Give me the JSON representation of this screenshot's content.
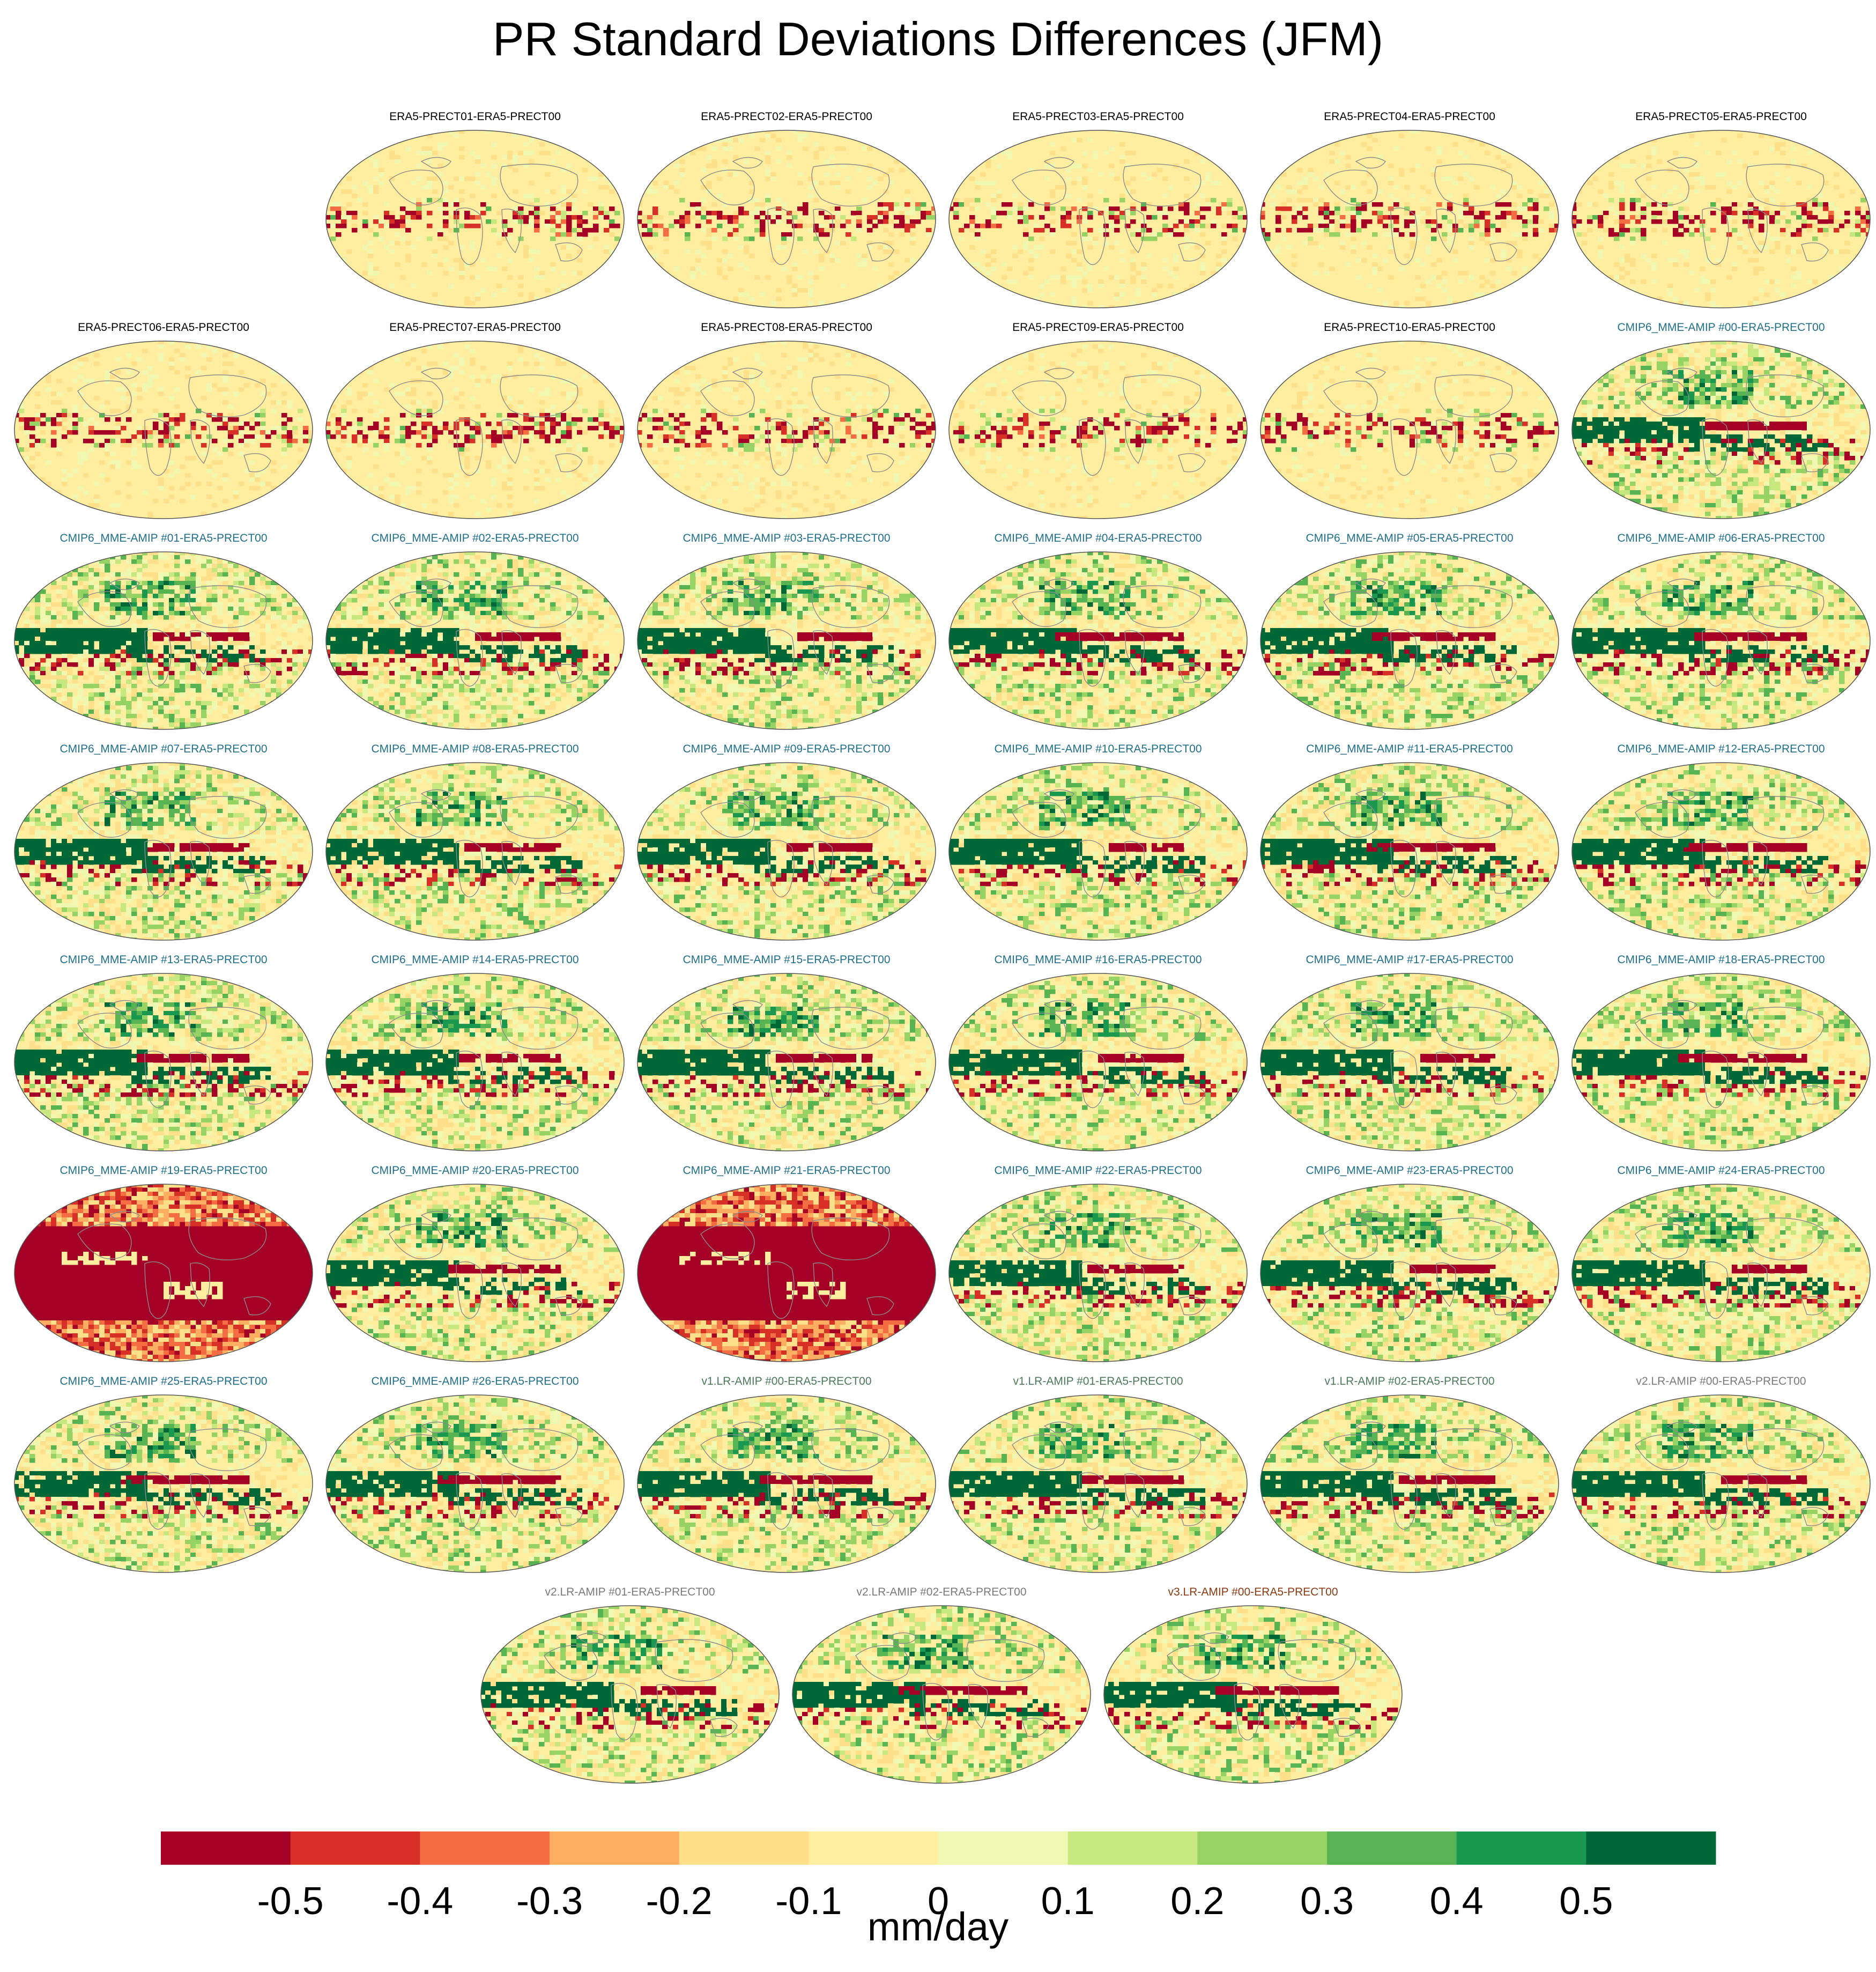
{
  "title": "PR Standard Deviations Differences (JFM)",
  "units": "mm/day",
  "colors": {
    "era5_label": "#000000",
    "cmip6_label": "#1f6f8b",
    "v1_label": "#4a7a5a",
    "v2_label": "#7a7a7a",
    "v3_label": "#8b3a10",
    "land_outline": "#8c8c8c"
  },
  "chart_data": {
    "type": "heatmap",
    "projection": "robinson-global-map",
    "title": "PR Standard Deviations Differences (JFM)",
    "units": "mm/day",
    "colorbar": {
      "ticks": [
        "-0.5",
        "-0.4",
        "-0.3",
        "-0.2",
        "-0.1",
        "0",
        "0.1",
        "0.2",
        "0.3",
        "0.4",
        "0.5"
      ],
      "bins": [
        {
          "lo": null,
          "hi": -0.5,
          "color": "#a50026"
        },
        {
          "lo": -0.5,
          "hi": -0.4,
          "color": "#d73027"
        },
        {
          "lo": -0.4,
          "hi": -0.3,
          "color": "#f46d43"
        },
        {
          "lo": -0.3,
          "hi": -0.2,
          "color": "#fdae61"
        },
        {
          "lo": -0.2,
          "hi": -0.1,
          "color": "#fee08b"
        },
        {
          "lo": -0.1,
          "hi": 0.0,
          "color": "#ffeda0"
        },
        {
          "lo": 0.0,
          "hi": 0.1,
          "color": "#f0f7b0"
        },
        {
          "lo": 0.1,
          "hi": 0.2,
          "color": "#c7e77f"
        },
        {
          "lo": 0.2,
          "hi": 0.3,
          "color": "#97d265"
        },
        {
          "lo": 0.3,
          "hi": 0.4,
          "color": "#58b453"
        },
        {
          "lo": 0.4,
          "hi": 0.5,
          "color": "#1a9850"
        },
        {
          "lo": 0.5,
          "hi": null,
          "color": "#006837"
        }
      ]
    },
    "panels": [
      {
        "label": "ERA5-PRECT01-ERA5-PRECT00",
        "group": "era5",
        "pattern": "era5"
      },
      {
        "label": "ERA5-PRECT02-ERA5-PRECT00",
        "group": "era5",
        "pattern": "era5"
      },
      {
        "label": "ERA5-PRECT03-ERA5-PRECT00",
        "group": "era5",
        "pattern": "era5"
      },
      {
        "label": "ERA5-PRECT04-ERA5-PRECT00",
        "group": "era5",
        "pattern": "era5"
      },
      {
        "label": "ERA5-PRECT05-ERA5-PRECT00",
        "group": "era5",
        "pattern": "era5"
      },
      {
        "label": "ERA5-PRECT06-ERA5-PRECT00",
        "group": "era5",
        "pattern": "era5"
      },
      {
        "label": "ERA5-PRECT07-ERA5-PRECT00",
        "group": "era5",
        "pattern": "era5"
      },
      {
        "label": "ERA5-PRECT08-ERA5-PRECT00",
        "group": "era5",
        "pattern": "era5"
      },
      {
        "label": "ERA5-PRECT09-ERA5-PRECT00",
        "group": "era5",
        "pattern": "era5"
      },
      {
        "label": "ERA5-PRECT10-ERA5-PRECT00",
        "group": "era5",
        "pattern": "era5"
      },
      {
        "label": "CMIP6_MME-AMIP  #00-ERA5-PRECT00",
        "group": "cmip6",
        "pattern": "model"
      },
      {
        "label": "CMIP6_MME-AMIP  #01-ERA5-PRECT00",
        "group": "cmip6",
        "pattern": "model"
      },
      {
        "label": "CMIP6_MME-AMIP  #02-ERA5-PRECT00",
        "group": "cmip6",
        "pattern": "model"
      },
      {
        "label": "CMIP6_MME-AMIP  #03-ERA5-PRECT00",
        "group": "cmip6",
        "pattern": "model"
      },
      {
        "label": "CMIP6_MME-AMIP  #04-ERA5-PRECT00",
        "group": "cmip6",
        "pattern": "model"
      },
      {
        "label": "CMIP6_MME-AMIP  #05-ERA5-PRECT00",
        "group": "cmip6",
        "pattern": "model"
      },
      {
        "label": "CMIP6_MME-AMIP  #06-ERA5-PRECT00",
        "group": "cmip6",
        "pattern": "model"
      },
      {
        "label": "CMIP6_MME-AMIP  #07-ERA5-PRECT00",
        "group": "cmip6",
        "pattern": "model"
      },
      {
        "label": "CMIP6_MME-AMIP  #08-ERA5-PRECT00",
        "group": "cmip6",
        "pattern": "model"
      },
      {
        "label": "CMIP6_MME-AMIP  #09-ERA5-PRECT00",
        "group": "cmip6",
        "pattern": "model"
      },
      {
        "label": "CMIP6_MME-AMIP  #10-ERA5-PRECT00",
        "group": "cmip6",
        "pattern": "model"
      },
      {
        "label": "CMIP6_MME-AMIP  #11-ERA5-PRECT00",
        "group": "cmip6",
        "pattern": "model"
      },
      {
        "label": "CMIP6_MME-AMIP  #12-ERA5-PRECT00",
        "group": "cmip6",
        "pattern": "model"
      },
      {
        "label": "CMIP6_MME-AMIP  #13-ERA5-PRECT00",
        "group": "cmip6",
        "pattern": "model"
      },
      {
        "label": "CMIP6_MME-AMIP  #14-ERA5-PRECT00",
        "group": "cmip6",
        "pattern": "model"
      },
      {
        "label": "CMIP6_MME-AMIP  #15-ERA5-PRECT00",
        "group": "cmip6",
        "pattern": "model"
      },
      {
        "label": "CMIP6_MME-AMIP  #16-ERA5-PRECT00",
        "group": "cmip6",
        "pattern": "model"
      },
      {
        "label": "CMIP6_MME-AMIP  #17-ERA5-PRECT00",
        "group": "cmip6",
        "pattern": "model"
      },
      {
        "label": "CMIP6_MME-AMIP  #18-ERA5-PRECT00",
        "group": "cmip6",
        "pattern": "model"
      },
      {
        "label": "CMIP6_MME-AMIP  #19-ERA5-PRECT00",
        "group": "cmip6",
        "pattern": "allred"
      },
      {
        "label": "CMIP6_MME-AMIP  #20-ERA5-PRECT00",
        "group": "cmip6",
        "pattern": "model"
      },
      {
        "label": "CMIP6_MME-AMIP  #21-ERA5-PRECT00",
        "group": "cmip6",
        "pattern": "allred"
      },
      {
        "label": "CMIP6_MME-AMIP  #22-ERA5-PRECT00",
        "group": "cmip6",
        "pattern": "model"
      },
      {
        "label": "CMIP6_MME-AMIP  #23-ERA5-PRECT00",
        "group": "cmip6",
        "pattern": "model"
      },
      {
        "label": "CMIP6_MME-AMIP  #24-ERA5-PRECT00",
        "group": "cmip6",
        "pattern": "model"
      },
      {
        "label": "CMIP6_MME-AMIP  #25-ERA5-PRECT00",
        "group": "cmip6",
        "pattern": "model"
      },
      {
        "label": "CMIP6_MME-AMIP  #26-ERA5-PRECT00",
        "group": "cmip6",
        "pattern": "model"
      },
      {
        "label": "v1.LR-AMIP  #00-ERA5-PRECT00",
        "group": "v1",
        "pattern": "model"
      },
      {
        "label": "v1.LR-AMIP  #01-ERA5-PRECT00",
        "group": "v1",
        "pattern": "model"
      },
      {
        "label": "v1.LR-AMIP  #02-ERA5-PRECT00",
        "group": "v1",
        "pattern": "model"
      },
      {
        "label": "v2.LR-AMIP  #00-ERA5-PRECT00",
        "group": "v2",
        "pattern": "model"
      },
      {
        "label": "v2.LR-AMIP  #01-ERA5-PRECT00",
        "group": "v2",
        "pattern": "model"
      },
      {
        "label": "v2.LR-AMIP  #02-ERA5-PRECT00",
        "group": "v2",
        "pattern": "model"
      },
      {
        "label": "v3.LR-AMIP  #00-ERA5-PRECT00",
        "group": "v3",
        "pattern": "model"
      }
    ]
  }
}
